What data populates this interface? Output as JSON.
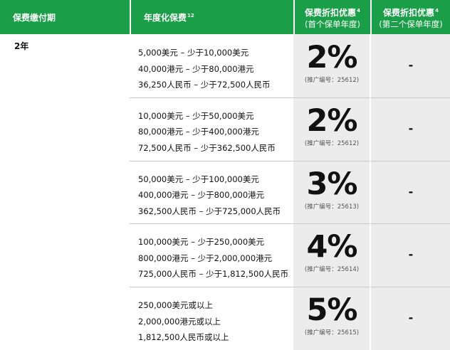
{
  "header": {
    "columns": [
      {
        "title": "保费缴付期"
      },
      {
        "title": "年度化保费",
        "sup": "12"
      },
      {
        "title": "保费折扣优惠",
        "sup": "4",
        "subtitle": "(首个保单年度)"
      },
      {
        "title": "保费折扣优惠",
        "sup": "4",
        "subtitle": "(第二个保单年度)"
      }
    ]
  },
  "table": {
    "period": "2年",
    "rows": [
      {
        "premium": [
          "5,000美元 – 少于10,000美元",
          "40,000港元 – 少于80,000港元",
          "36,250人民币 – 少于72,500人民币"
        ],
        "discount": "2%",
        "promo": "(推广编号：25612)",
        "second_year": "-"
      },
      {
        "premium": [
          "10,000美元 – 少于50,000美元",
          "80,000港元 – 少于400,000港元",
          "72,500人民币 – 少于362,500人民币"
        ],
        "discount": "2%",
        "promo": "(推广编号：25612)",
        "second_year": "-"
      },
      {
        "premium": [
          "50,000美元 – 少于100,000美元",
          "400,000港元 – 少于800,000港元",
          "362,500人民币 – 少于725,000人民币"
        ],
        "discount": "3%",
        "promo": "(推广编号：25613)",
        "second_year": "-"
      },
      {
        "premium": [
          "100,000美元 – 少于250,000美元",
          "800,000港元 – 少于2,000,000港元",
          "725,000人民币 – 少于1,812,500人民币"
        ],
        "discount": "4%",
        "promo": "(推广编号：25614)",
        "second_year": "-"
      },
      {
        "premium": [
          "250,000美元或以上",
          "2,000,000港元或以上",
          "1,812,500人民币或以上"
        ],
        "discount": "5%",
        "promo": "(推广编号：25615)",
        "second_year": "-"
      }
    ]
  }
}
